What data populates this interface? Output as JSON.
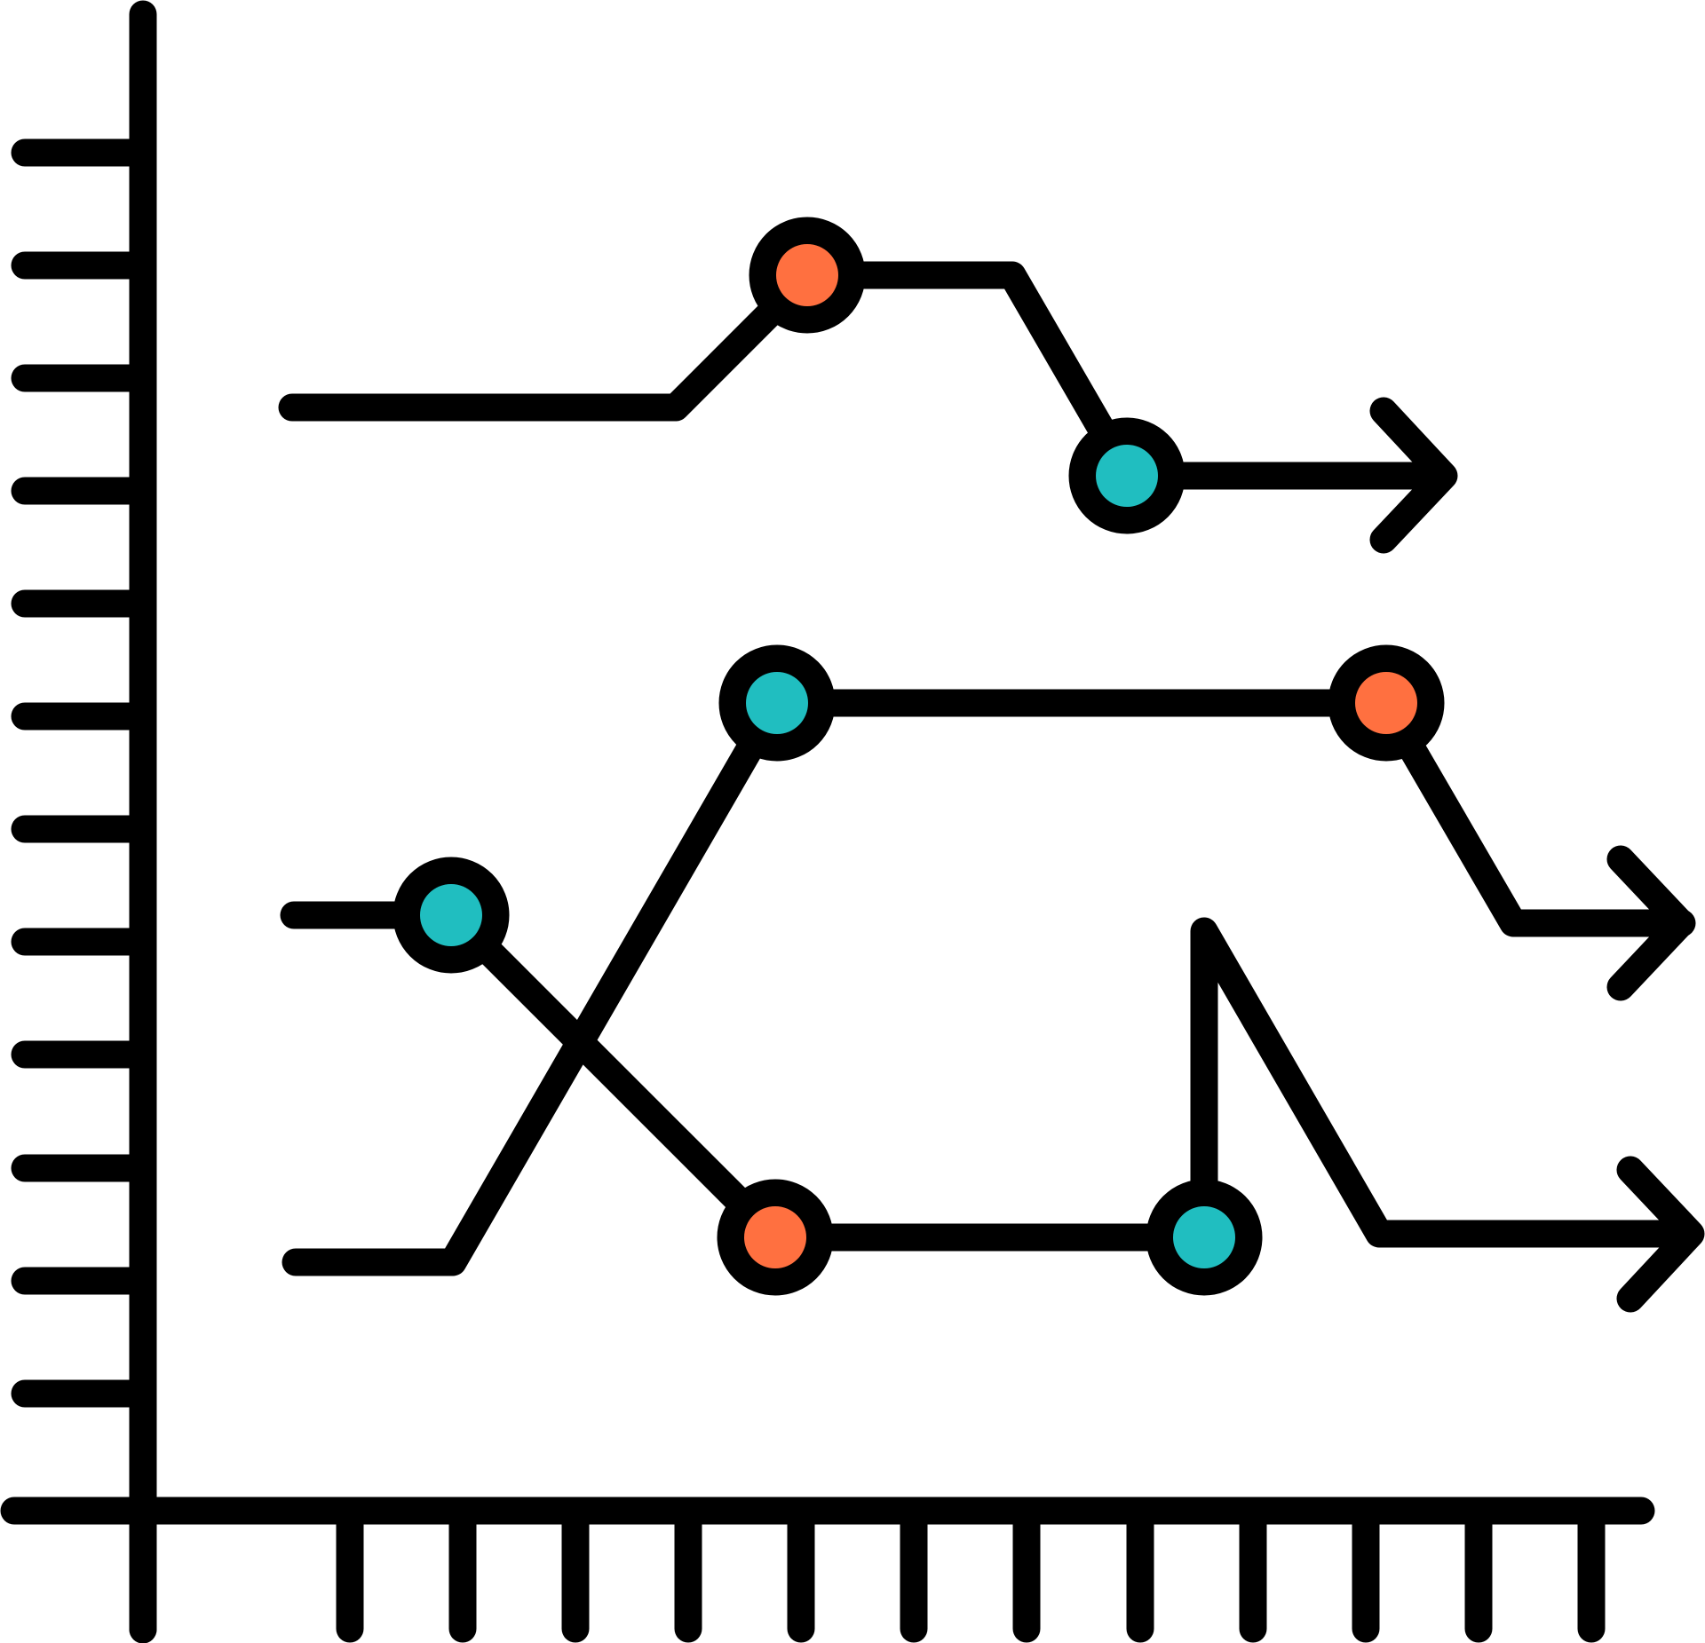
{
  "icon": {
    "name": "multi-line-chart-icon",
    "stroke_color": "#000000",
    "background": "#ffffff",
    "node_colors": {
      "teal": "#20bec0",
      "orange": "#ff7040"
    }
  },
  "axes": {
    "y_axis_ticks": 12,
    "x_axis_ticks": 13
  },
  "series": [
    {
      "id": "top-line",
      "nodes": [
        {
          "color": "orange"
        },
        {
          "color": "teal"
        }
      ],
      "ends_with_arrow": true
    },
    {
      "id": "middle-line",
      "nodes": [
        {
          "color": "teal"
        },
        {
          "color": "orange"
        }
      ],
      "ends_with_arrow": true
    },
    {
      "id": "crossing-line",
      "nodes": [
        {
          "color": "teal"
        },
        {
          "color": "orange"
        },
        {
          "color": "teal"
        }
      ],
      "ends_with_arrow": true
    }
  ]
}
